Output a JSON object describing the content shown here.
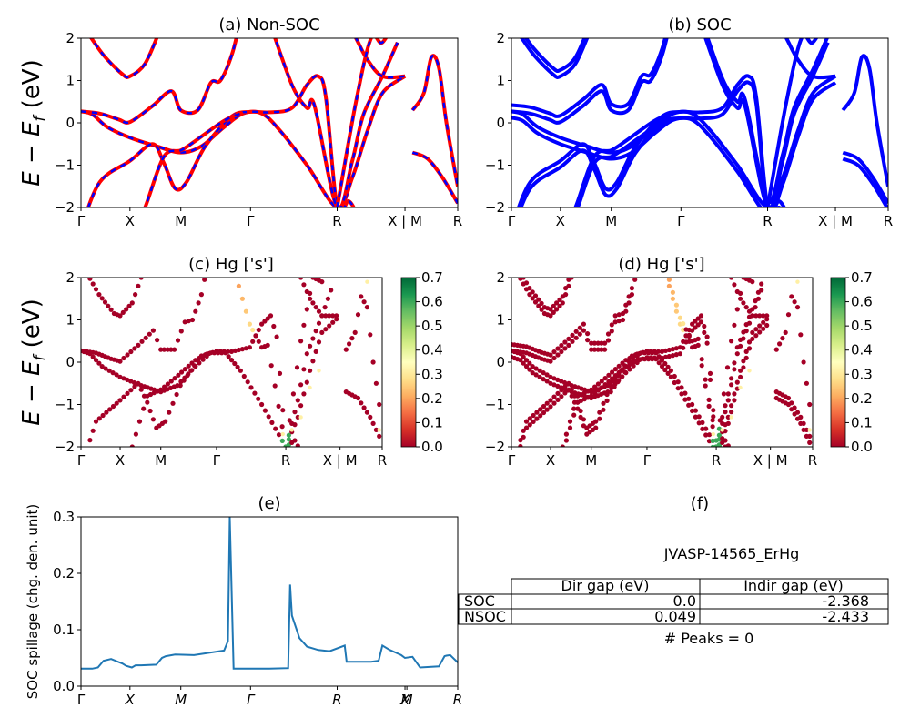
{
  "bands": {
    "yticks": [
      "−2",
      "−1",
      "0",
      "1",
      "2"
    ],
    "yrange": [
      -2,
      2
    ],
    "ylabel_main": "E − E",
    "ylabel_sub": "f",
    "ylabel_unit": " (eV)",
    "kpath": [
      "Γ",
      "X",
      "M",
      "Γ",
      "R",
      "X | M",
      "R"
    ],
    "kpath_fractions": [
      0,
      0.13,
      0.265,
      0.45,
      0.68,
      0.86,
      1.0
    ]
  },
  "panel_a": {
    "title": "(a) Non-SOC",
    "colors": {
      "line": "#ff0000",
      "dash": "#0000ff"
    }
  },
  "panel_b": {
    "title": "(b) SOC",
    "colors": {
      "line": "#0000ff"
    }
  },
  "panel_c": {
    "title": "(c)  Hg ['s']"
  },
  "panel_d": {
    "title": "(d) Hg ['s']"
  },
  "colorbar": {
    "ticks": [
      "0.0",
      "0.1",
      "0.2",
      "0.3",
      "0.4",
      "0.5",
      "0.6",
      "0.7"
    ],
    "range": [
      0,
      0.7
    ],
    "colormap": "RdYlGn",
    "stops": [
      "#a50026",
      "#d73027",
      "#f46d43",
      "#fdae61",
      "#fee08b",
      "#ffffbf",
      "#d9ef8b",
      "#a6d96a",
      "#66bd63",
      "#1a9850",
      "#006837"
    ]
  },
  "panel_e": {
    "title": "(e)",
    "ylabel": "SOC spillage (chg. den. unit)",
    "yticks": [
      "0.0",
      "0.1",
      "0.2",
      "0.3"
    ],
    "xticks": [
      "Γ",
      "X",
      "M",
      "Γ",
      "R",
      "X",
      "M",
      "R"
    ],
    "color": "#1f77b4"
  },
  "panel_f": {
    "title": "(f)",
    "material": "JVASP-14565_ErHg",
    "table": {
      "headers": [
        "",
        "Dir gap (eV)",
        "Indir gap (eV)"
      ],
      "rows": [
        [
          "SOC",
          "0.0",
          "-2.368"
        ],
        [
          "NSOC",
          "0.049",
          "-2.433"
        ]
      ]
    },
    "peaks": "# Peaks = 0"
  },
  "chart_data": [
    {
      "type": "line",
      "title": "(a) Non-SOC",
      "ylabel": "E − E_f (eV)",
      "ylim": [
        -2,
        2
      ],
      "x_ticks": [
        "Γ",
        "X",
        "M",
        "Γ",
        "R",
        "X | M",
        "R"
      ],
      "series": [
        {
          "x": [
            0,
            0.06,
            0.13,
            0.2,
            0.265
          ],
          "values": [
            0.25,
            0.1,
            -0.25,
            -0.55,
            -0.7
          ]
        },
        {
          "x": [
            0,
            0.06,
            0.13,
            0.2,
            0.265
          ],
          "values": [
            0.25,
            0.2,
            0.05,
            0.0,
            0.05
          ]
        },
        {
          "x": [
            0.265,
            0.35,
            0.42,
            0.45,
            0.55,
            0.68
          ],
          "values": [
            -0.7,
            -0.45,
            0.2,
            0.25,
            -0.5,
            -2.0
          ]
        }
      ]
    },
    {
      "type": "line",
      "title": "(b) SOC",
      "ylim": [
        -2,
        2
      ],
      "x_ticks": [
        "Γ",
        "X",
        "M",
        "Γ",
        "R",
        "X | M",
        "R"
      ],
      "series": [
        {
          "x": [
            0,
            0.06,
            0.13,
            0.2,
            0.265
          ],
          "values": [
            0.28,
            0.1,
            -0.25,
            -0.5,
            -0.6
          ]
        },
        {
          "x": [
            0.265,
            0.35,
            0.45,
            0.55,
            0.68
          ],
          "values": [
            -0.6,
            -0.3,
            0.25,
            -0.4,
            -2.0
          ]
        }
      ]
    },
    {
      "type": "scatter",
      "title": "(c)  Hg ['s']",
      "ylim": [
        -2,
        2
      ],
      "colorbar_range": [
        0,
        0.7
      ],
      "x_ticks": [
        "Γ",
        "X",
        "M",
        "Γ",
        "R",
        "X | M",
        "R"
      ]
    },
    {
      "type": "scatter",
      "title": "(d) Hg ['s']",
      "ylim": [
        -2,
        2
      ],
      "colorbar_range": [
        0,
        0.7
      ],
      "x_ticks": [
        "Γ",
        "X",
        "M",
        "Γ",
        "R",
        "X | M",
        "R"
      ]
    },
    {
      "type": "line",
      "title": "(e)",
      "ylabel": "SOC spillage (chg. den. unit)",
      "ylim": [
        0,
        0.3
      ],
      "x_ticks": [
        "Γ",
        "X",
        "M",
        "Γ",
        "R",
        "X",
        "M",
        "R"
      ],
      "series": [
        {
          "x": [
            0,
            0.03,
            0.045,
            0.06,
            0.08,
            0.11,
            0.12,
            0.135,
            0.145,
            0.16,
            0.2,
            0.215,
            0.225,
            0.25,
            0.3,
            0.33,
            0.38,
            0.39,
            0.395,
            0.405,
            0.47,
            0.5,
            0.55,
            0.555,
            0.56,
            0.58,
            0.6,
            0.63,
            0.66,
            0.7,
            0.705,
            0.715,
            0.77,
            0.79,
            0.8,
            0.82,
            0.85,
            0.86,
            0.88,
            0.9,
            0.95,
            0.965,
            0.97,
            0.98,
            1.0
          ],
          "values": [
            0.031,
            0.031,
            0.033,
            0.045,
            0.048,
            0.04,
            0.036,
            0.033,
            0.037,
            0.037,
            0.038,
            0.05,
            0.053,
            0.056,
            0.055,
            0.058,
            0.063,
            0.08,
            0.3,
            0.031,
            0.031,
            0.031,
            0.032,
            0.18,
            0.125,
            0.085,
            0.07,
            0.064,
            0.062,
            0.072,
            0.043,
            0.043,
            0.043,
            0.045,
            0.072,
            0.064,
            0.055,
            0.05,
            0.052,
            0.033,
            0.035,
            0.053,
            0.054,
            0.055,
            0.042
          ]
        }
      ]
    },
    {
      "type": "table",
      "title": "(f)",
      "caption": "JVASP-14565_ErHg",
      "columns": [
        "",
        "Dir gap (eV)",
        "Indir gap (eV)"
      ],
      "rows": [
        [
          "SOC",
          0.0,
          -2.368
        ],
        [
          "NSOC",
          0.049,
          -2.433
        ]
      ],
      "note": "# Peaks = 0"
    }
  ]
}
